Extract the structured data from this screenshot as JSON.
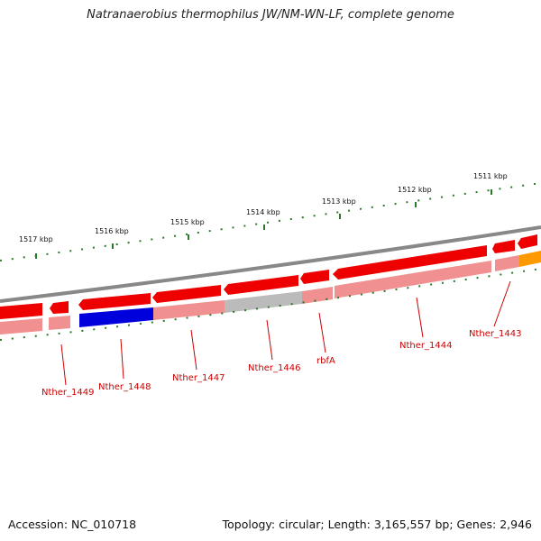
{
  "title": "Natranaerobius thermophilus JW/NM-WN-LF, complete genome",
  "footer": {
    "accession": "Accession: NC_010718",
    "summary": "Topology: circular; Length: 3,165,557 bp; Genes: 2,946"
  },
  "scale_labels": [
    "1517 kbp",
    "1516 kbp",
    "1515 kbp",
    "1514 kbp",
    "1513 kbp",
    "1512 kbp",
    "1511 kbp"
  ],
  "gene_labels": [
    "Nther_1449",
    "Nther_1448",
    "Nther_1447",
    "Nther_1446",
    "rbfA",
    "Nther_1444",
    "Nther_1443"
  ],
  "colors": {
    "cds_forward": "#ee0000",
    "cds_shadow": "#f09090",
    "highlight_gene": "#0000dd",
    "gray_gene": "#bbbbbb",
    "orange_gene": "#ff9900",
    "backbone": "#888888",
    "tick": "#2a7a2a",
    "label": "#cc0000"
  }
}
